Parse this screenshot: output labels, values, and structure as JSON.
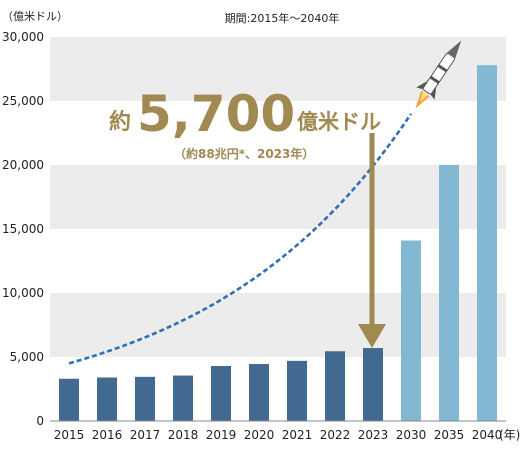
{
  "chart_data": {
    "type": "bar",
    "title": "期間:2015年～2040年",
    "y_unit_label": "（億米ドル）",
    "x_unit_label": "(年)",
    "categories": [
      "2015",
      "2016",
      "2017",
      "2018",
      "2019",
      "2020",
      "2021",
      "2022",
      "2023",
      "2030",
      "2035",
      "2040"
    ],
    "values": [
      3300,
      3400,
      3450,
      3550,
      4300,
      4450,
      4700,
      5450,
      5700,
      14100,
      20000,
      27800
    ],
    "projected_from_index": 9,
    "ylim": [
      0,
      30000
    ],
    "y_ticks": [
      "0",
      "5,000",
      "10,000",
      "15,000",
      "20,000",
      "25,000",
      "30,000"
    ],
    "y_tick_values": [
      0,
      5000,
      10000,
      15000,
      20000,
      25000,
      30000
    ],
    "grid": "alternating horizontal bands",
    "trend_curve": {
      "style": "dashed",
      "x_from": "2015",
      "x_to": "2030",
      "y_start": 4500,
      "y_end": 24000
    },
    "callout": {
      "prefix": "約",
      "value": "5,700",
      "unit": "億米ドル",
      "sub": "（約88兆円*、2023年）",
      "points_to": "2023"
    },
    "colors": {
      "actual_bar": "#426990",
      "projected_bar": "#82B8D1",
      "band": "#ECECEC",
      "trend": "#2F6FB5",
      "callout": "#A08A52",
      "rocket_flame": "#F3A23A"
    },
    "icons": [
      "rocket-icon"
    ]
  }
}
